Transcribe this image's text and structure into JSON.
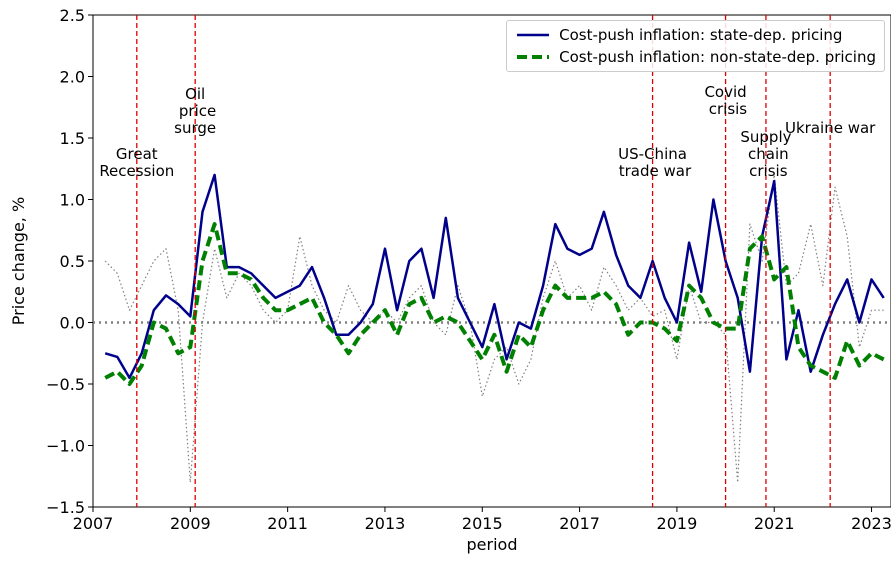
{
  "chart_data": {
    "type": "line",
    "x_label": "period",
    "y_label": "Price change, %",
    "xlim": [
      2007,
      2023.4
    ],
    "ylim": [
      -1.5,
      2.5
    ],
    "xticks": [
      2007,
      2009,
      2011,
      2013,
      2015,
      2017,
      2019,
      2021,
      2023
    ],
    "yticks": [
      {
        "value": -1.5,
        "label": "−1.5"
      },
      {
        "value": -1.0,
        "label": "−1.0"
      },
      {
        "value": -0.5,
        "label": "−0.5"
      },
      {
        "value": 0,
        "label": "0.0"
      },
      0.5,
      {
        "value": 1.0,
        "label": "1.0"
      },
      1.5,
      {
        "value": 2.0,
        "label": "2.0"
      },
      2.5
    ],
    "legend": "upper right",
    "reference_line": {
      "value": 0,
      "color": "#808080"
    },
    "x": [
      2007.25,
      2007.5,
      2007.75,
      2008,
      2008.25,
      2008.5,
      2008.75,
      2009,
      2009.25,
      2009.5,
      2009.75,
      2010,
      2010.25,
      2010.5,
      2010.75,
      2011,
      2011.25,
      2011.5,
      2011.75,
      2012,
      2012.25,
      2012.5,
      2012.75,
      2013,
      2013.25,
      2013.5,
      2013.75,
      2014,
      2014.25,
      2014.5,
      2014.75,
      2015,
      2015.25,
      2015.5,
      2015.75,
      2016,
      2016.25,
      2016.5,
      2016.75,
      2017,
      2017.25,
      2017.5,
      2017.75,
      2018,
      2018.25,
      2018.5,
      2018.75,
      2019,
      2019.25,
      2019.5,
      2019.75,
      2020,
      2020.25,
      2020.5,
      2020.75,
      2021,
      2021.25,
      2021.5,
      2021.75,
      2022,
      2022.25,
      2022.5,
      2022.75,
      2023,
      2023.25
    ],
    "series": [
      {
        "color": "#808080",
        "style": "dotted",
        "width": 1.2,
        "values": [
          0.5,
          0.4,
          0.1,
          0.3,
          0.5,
          0.6,
          0.1,
          -1.3,
          0.0,
          0.6,
          0.2,
          0.4,
          0.3,
          0.1,
          0.0,
          0.1,
          0.7,
          0.3,
          0.1,
          0.0,
          0.3,
          0.1,
          0.0,
          0.1,
          0.0,
          0.2,
          0.3,
          0.0,
          -0.1,
          0.3,
          0.0,
          -0.6,
          -0.3,
          -0.2,
          -0.5,
          -0.3,
          0.2,
          0.5,
          0.2,
          0.3,
          0.1,
          0.45,
          0.3,
          0.1,
          0.2,
          0.05,
          0.1,
          -0.3,
          0.3,
          0.0,
          0.0,
          -0.1,
          -1.3,
          0.8,
          0.5,
          1.2,
          0.3,
          0.4,
          0.8,
          0.3,
          1.1,
          0.7,
          -0.2,
          0.1,
          0.1
        ]
      },
      {
        "name": "Cost-push inflation: state-dep. pricing",
        "color": "#00008b",
        "style": "solid",
        "width": 2.5,
        "values": [
          -0.25,
          -0.28,
          -0.45,
          -0.25,
          0.1,
          0.22,
          0.15,
          0.05,
          0.9,
          1.2,
          0.45,
          0.45,
          0.4,
          0.3,
          0.2,
          0.25,
          0.3,
          0.45,
          0.2,
          -0.1,
          -0.1,
          0.0,
          0.15,
          0.6,
          0.1,
          0.5,
          0.6,
          0.2,
          0.85,
          0.2,
          0.0,
          -0.2,
          0.15,
          -0.3,
          0.0,
          -0.05,
          0.3,
          0.8,
          0.6,
          0.55,
          0.6,
          0.9,
          0.55,
          0.3,
          0.2,
          0.5,
          0.2,
          0.0,
          0.65,
          0.25,
          1.0,
          0.5,
          0.2,
          -0.4,
          0.7,
          1.15,
          -0.3,
          0.1,
          -0.4,
          -0.1,
          0.15,
          0.35,
          0.0,
          0.35,
          0.2
        ]
      },
      {
        "name": "Cost-push inflation: non-state-dep. pricing",
        "color": "#008000",
        "style": "dashed",
        "width": 4,
        "values": [
          -0.45,
          -0.4,
          -0.5,
          -0.35,
          0.0,
          -0.05,
          -0.25,
          -0.2,
          0.5,
          0.8,
          0.4,
          0.4,
          0.35,
          0.2,
          0.1,
          0.1,
          0.15,
          0.2,
          0.0,
          -0.1,
          -0.25,
          -0.1,
          0.0,
          0.1,
          -0.1,
          0.15,
          0.2,
          0.0,
          0.05,
          0.0,
          -0.15,
          -0.3,
          -0.1,
          -0.4,
          -0.1,
          -0.2,
          0.1,
          0.3,
          0.2,
          0.2,
          0.2,
          0.25,
          0.15,
          -0.1,
          0.0,
          0.0,
          -0.05,
          -0.15,
          0.3,
          0.2,
          0.0,
          -0.05,
          -0.05,
          0.6,
          0.7,
          0.35,
          0.45,
          -0.2,
          -0.35,
          -0.4,
          -0.45,
          -0.15,
          -0.35,
          -0.25,
          -0.3
        ]
      }
    ],
    "annotations": [
      {
        "x": 2007.9,
        "y": 1.16,
        "label": "Great\nRecession"
      },
      {
        "x": 2009.1,
        "y": 1.51,
        "label": "Oil\n price\nsurge"
      },
      {
        "x": 2018.5,
        "y": 1.16,
        "label": "US-China\n trade war"
      },
      {
        "x": 2020.0,
        "y": 1.66,
        "label": "Covid\n crisis"
      },
      {
        "x": 2020.83,
        "y": 1.16,
        "label": "Supply\n chain\n crisis"
      },
      {
        "x": 2022.15,
        "y": 1.51,
        "label": "Ukraine war"
      }
    ],
    "annotation_color": "#e00000"
  }
}
